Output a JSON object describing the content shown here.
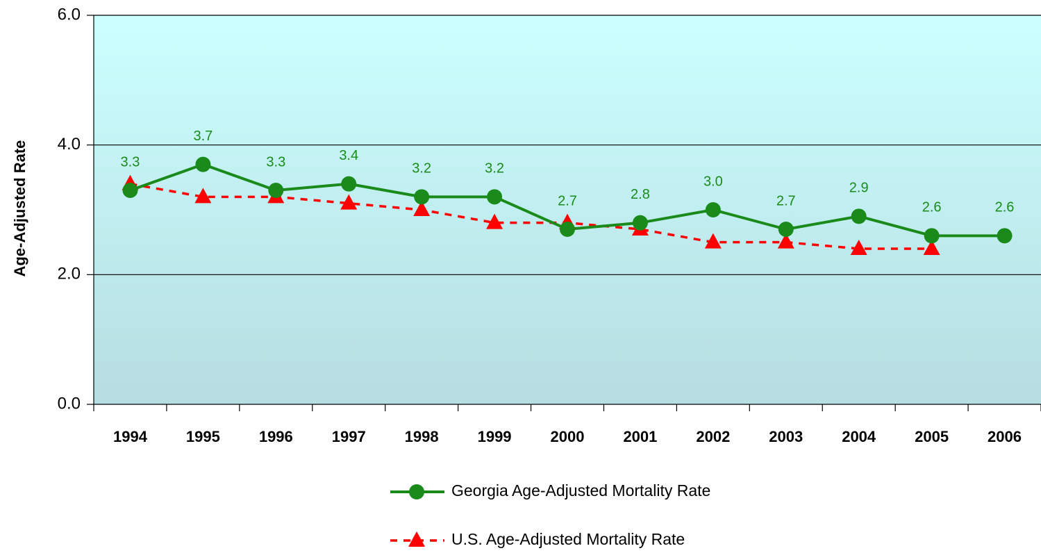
{
  "chart_data": {
    "type": "line",
    "y_label": "Age-Adjusted Rate",
    "categories": [
      "1994",
      "1995",
      "1996",
      "1997",
      "1998",
      "1999",
      "2000",
      "2001",
      "2002",
      "2003",
      "2004",
      "2005",
      "2006"
    ],
    "series": [
      {
        "name": "Georgia Age-Adjusted Mortality Rate",
        "color": "#1a8a1a",
        "marker": "circle",
        "dash": false,
        "values": [
          3.3,
          3.7,
          3.3,
          3.4,
          3.2,
          3.2,
          2.7,
          2.8,
          3.0,
          2.7,
          2.9,
          2.6,
          2.6
        ],
        "value_labels": [
          "3.3",
          "3.7",
          "3.3",
          "3.4",
          "3.2",
          "3.2",
          "2.7",
          "2.8",
          "3.0",
          "2.7",
          "2.9",
          "2.6",
          "2.6"
        ]
      },
      {
        "name": "U.S. Age-Adjusted Mortality Rate",
        "color": "#ff0000",
        "marker": "triangle",
        "dash": true,
        "values": [
          3.4,
          3.2,
          3.2,
          3.1,
          3.0,
          2.8,
          2.8,
          2.7,
          2.5,
          2.5,
          2.4,
          2.4,
          null
        ]
      }
    ],
    "ylim": [
      0,
      6
    ],
    "yticks": [
      {
        "value": 0,
        "label": "0.0"
      },
      {
        "value": 2,
        "label": "2.0"
      },
      {
        "value": 4,
        "label": "4.0"
      },
      {
        "value": 6,
        "label": "6.0"
      }
    ],
    "grid": true
  }
}
